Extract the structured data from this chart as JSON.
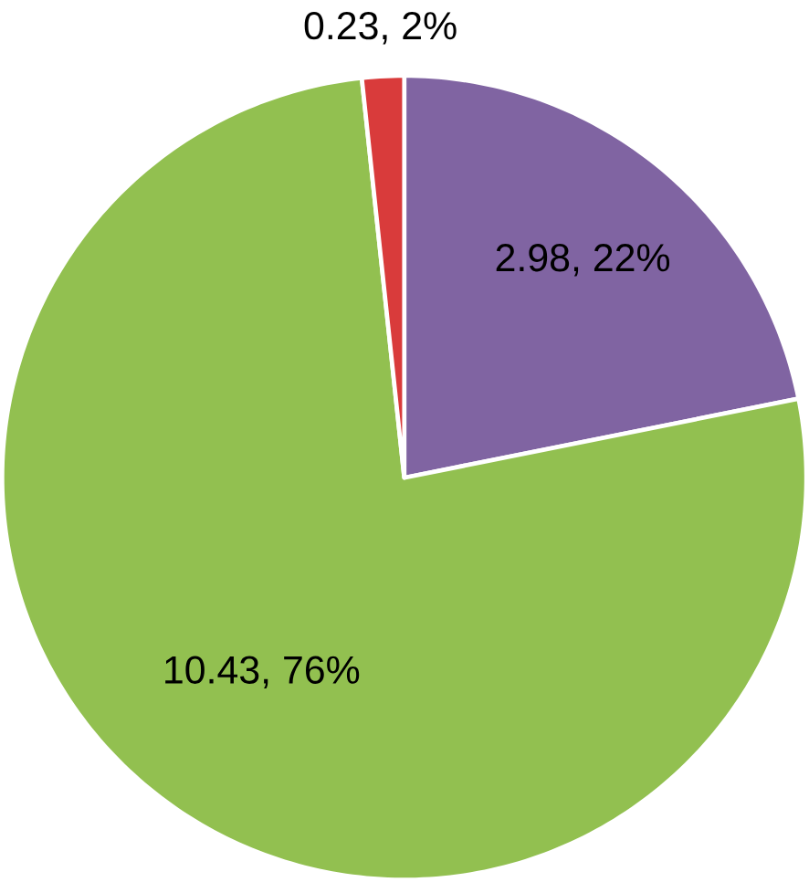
{
  "chart_data": {
    "type": "pie",
    "categories": [
      null,
      null,
      null
    ],
    "values": [
      2.98,
      10.43,
      0.23
    ],
    "colors": [
      "#8064a2",
      "#92c050",
      "#d93b3b"
    ],
    "value_labels": [
      "2.98, 22%",
      "10.43, 76%",
      "0.23, 2%"
    ]
  }
}
